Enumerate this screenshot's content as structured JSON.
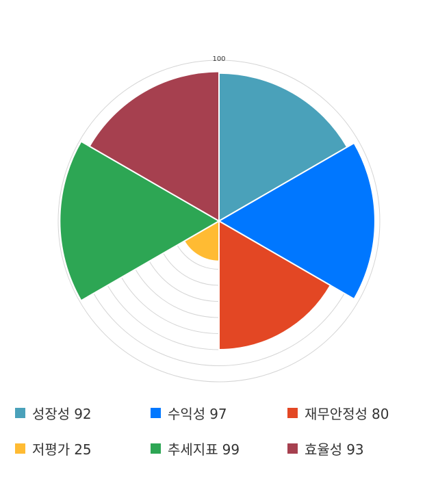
{
  "chart_data": {
    "type": "polar-area",
    "axis_max": 100,
    "axis_ticks": [
      10,
      20,
      30,
      40,
      50,
      60,
      70,
      80,
      90,
      100
    ],
    "tick_label": "100",
    "grid": true,
    "legend_position": "bottom",
    "categories": [
      "성장성",
      "수익성",
      "재무안정성",
      "저평가",
      "추세지표",
      "효율성"
    ],
    "values": [
      92,
      97,
      80,
      25,
      99,
      93
    ],
    "colors": [
      "#4AA1BA",
      "#0077FF",
      "#E34724",
      "#FFBB33",
      "#2DA654",
      "#A6404F"
    ]
  }
}
